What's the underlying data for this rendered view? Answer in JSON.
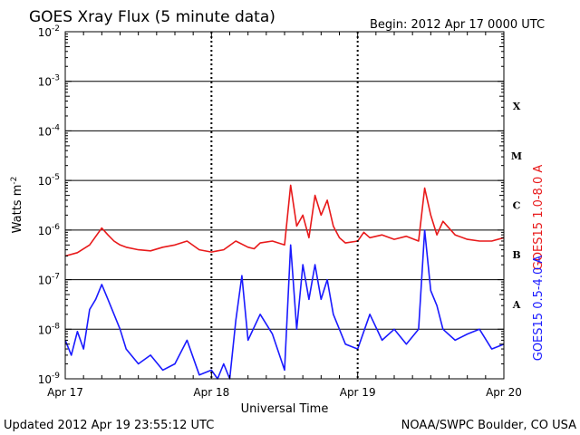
{
  "header": {
    "title": "GOES Xray Flux (5 minute data)",
    "begin": "Begin:  2012 Apr 17 0000 UTC"
  },
  "footer": {
    "updated": "Updated 2012 Apr 19 23:55:12 UTC",
    "credit": "NOAA/SWPC Boulder, CO USA"
  },
  "chart_data": {
    "type": "line",
    "title": "GOES Xray Flux (5 minute data)",
    "xlabel": "Universal Time",
    "ylabel": "Watts m-2",
    "y_scale": "log",
    "ylim": [
      1e-09,
      0.01
    ],
    "y_ticks": [
      {
        "base": "10",
        "exp": "-2"
      },
      {
        "base": "10",
        "exp": "-3"
      },
      {
        "base": "10",
        "exp": "-4"
      },
      {
        "base": "10",
        "exp": "-5"
      },
      {
        "base": "10",
        "exp": "-6"
      },
      {
        "base": "10",
        "exp": "-7"
      },
      {
        "base": "10",
        "exp": "-8"
      },
      {
        "base": "10",
        "exp": "-9"
      }
    ],
    "x_ticks": [
      "Apr 17",
      "Apr 18",
      "Apr 19",
      "Apr 20"
    ],
    "xlim": [
      "2012-04-17",
      "2012-04-20"
    ],
    "flare_classes": [
      {
        "label": "X",
        "level": 0.0001
      },
      {
        "label": "M",
        "level": 1e-05
      },
      {
        "label": "C",
        "level": 1e-06
      },
      {
        "label": "B",
        "level": 1e-07
      },
      {
        "label": "A",
        "level": 1e-08
      }
    ],
    "grid": true,
    "series": [
      {
        "name": "GOES15 1.0-8.0 A",
        "color": "#e8191a",
        "x": [
          "2012-04-17 00:00",
          "2012-04-17 02:00",
          "2012-04-17 04:00",
          "2012-04-17 06:00",
          "2012-04-17 07:00",
          "2012-04-17 08:00",
          "2012-04-17 09:00",
          "2012-04-17 10:00",
          "2012-04-17 12:00",
          "2012-04-17 14:00",
          "2012-04-17 16:00",
          "2012-04-17 18:00",
          "2012-04-17 20:00",
          "2012-04-17 22:00",
          "2012-04-18 00:00",
          "2012-04-18 01:00",
          "2012-04-18 02:00",
          "2012-04-18 04:00",
          "2012-04-18 06:00",
          "2012-04-18 07:00",
          "2012-04-18 08:00",
          "2012-04-18 10:00",
          "2012-04-18 12:00",
          "2012-04-18 13:00",
          "2012-04-18 14:00",
          "2012-04-18 15:00",
          "2012-04-18 16:00",
          "2012-04-18 17:00",
          "2012-04-18 18:00",
          "2012-04-18 19:00",
          "2012-04-18 20:00",
          "2012-04-18 21:00",
          "2012-04-18 22:00",
          "2012-04-19 00:00",
          "2012-04-19 01:00",
          "2012-04-19 02:00",
          "2012-04-19 04:00",
          "2012-04-19 06:00",
          "2012-04-19 08:00",
          "2012-04-19 10:00",
          "2012-04-19 11:00",
          "2012-04-19 12:00",
          "2012-04-19 13:00",
          "2012-04-19 14:00",
          "2012-04-19 16:00",
          "2012-04-19 18:00",
          "2012-04-19 20:00",
          "2012-04-19 22:00",
          "2012-04-20 00:00"
        ],
        "values": [
          3e-07,
          3.5e-07,
          5e-07,
          1.1e-06,
          8e-07,
          6e-07,
          5e-07,
          4.5e-07,
          4e-07,
          3.8e-07,
          4.5e-07,
          5e-07,
          6e-07,
          4e-07,
          3.6e-07,
          3.8e-07,
          4e-07,
          6e-07,
          4.5e-07,
          4.2e-07,
          5.5e-07,
          6e-07,
          5e-07,
          8e-06,
          1.2e-06,
          2e-06,
          7e-07,
          5e-06,
          2e-06,
          4e-06,
          1.2e-06,
          7e-07,
          5.5e-07,
          6e-07,
          9e-07,
          7e-07,
          8e-07,
          6.5e-07,
          7.5e-07,
          6e-07,
          7e-06,
          2e-06,
          8e-07,
          1.5e-06,
          8e-07,
          6.5e-07,
          6e-07,
          6e-07,
          7e-07
        ]
      },
      {
        "name": "GOES15 0.5-4.0 A",
        "color": "#1a1aff",
        "x": [
          "2012-04-17 00:00",
          "2012-04-17 01:00",
          "2012-04-17 02:00",
          "2012-04-17 03:00",
          "2012-04-17 04:00",
          "2012-04-17 05:00",
          "2012-04-17 06:00",
          "2012-04-17 07:00",
          "2012-04-17 08:00",
          "2012-04-17 09:00",
          "2012-04-17 10:00",
          "2012-04-17 12:00",
          "2012-04-17 14:00",
          "2012-04-17 16:00",
          "2012-04-17 18:00",
          "2012-04-17 20:00",
          "2012-04-17 22:00",
          "2012-04-18 00:00",
          "2012-04-18 01:00",
          "2012-04-18 02:00",
          "2012-04-18 03:00",
          "2012-04-18 04:00",
          "2012-04-18 05:00",
          "2012-04-18 06:00",
          "2012-04-18 08:00",
          "2012-04-18 10:00",
          "2012-04-18 12:00",
          "2012-04-18 13:00",
          "2012-04-18 14:00",
          "2012-04-18 15:00",
          "2012-04-18 16:00",
          "2012-04-18 17:00",
          "2012-04-18 18:00",
          "2012-04-18 19:00",
          "2012-04-18 20:00",
          "2012-04-18 21:00",
          "2012-04-18 22:00",
          "2012-04-19 00:00",
          "2012-04-19 02:00",
          "2012-04-19 04:00",
          "2012-04-19 06:00",
          "2012-04-19 08:00",
          "2012-04-19 10:00",
          "2012-04-19 11:00",
          "2012-04-19 12:00",
          "2012-04-19 13:00",
          "2012-04-19 14:00",
          "2012-04-19 16:00",
          "2012-04-19 18:00",
          "2012-04-19 20:00",
          "2012-04-19 22:00",
          "2012-04-20 00:00"
        ],
        "values": [
          6e-09,
          3e-09,
          9e-09,
          4e-09,
          2.5e-08,
          4e-08,
          8e-08,
          4e-08,
          2e-08,
          1e-08,
          4e-09,
          2e-09,
          3e-09,
          1.5e-09,
          2e-09,
          6e-09,
          1.2e-09,
          1.5e-09,
          1e-09,
          2e-09,
          1e-09,
          1.5e-08,
          1.2e-07,
          6e-09,
          2e-08,
          8e-09,
          1.5e-09,
          5e-07,
          1e-08,
          2e-07,
          4e-08,
          2e-07,
          4e-08,
          1e-07,
          2e-08,
          1e-08,
          5e-09,
          4e-09,
          2e-08,
          6e-09,
          1e-08,
          5e-09,
          1e-08,
          1e-06,
          6e-08,
          3e-08,
          1e-08,
          6e-09,
          8e-09,
          1e-08,
          4e-09,
          5e-09
        ]
      }
    ]
  }
}
